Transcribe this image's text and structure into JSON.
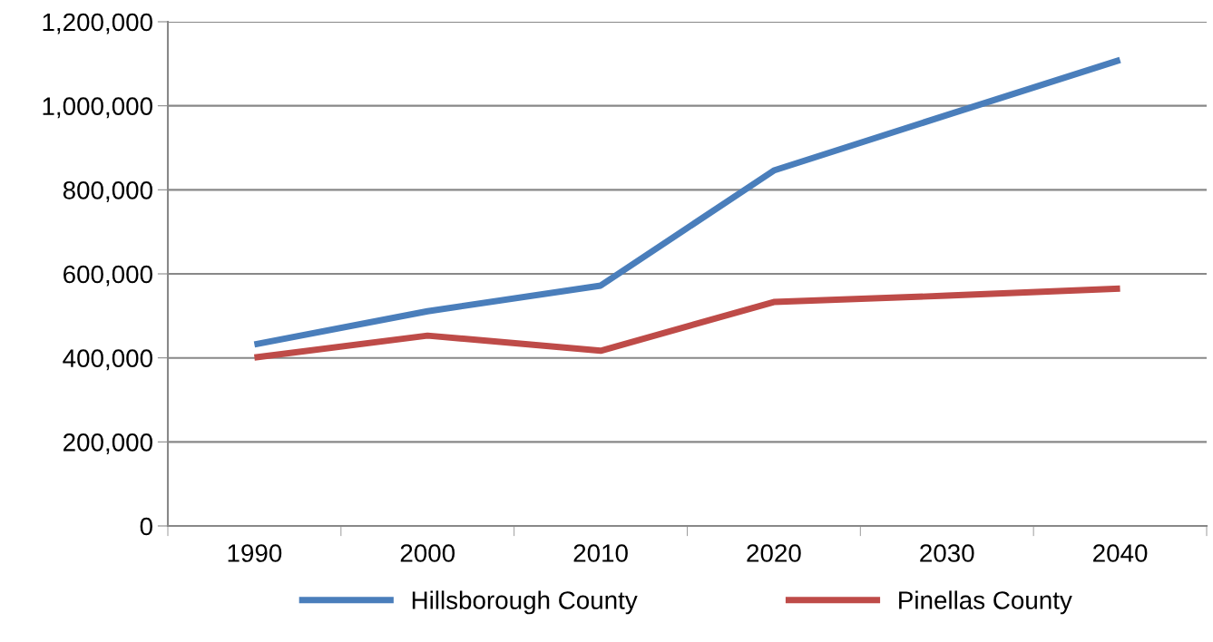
{
  "chart_data": {
    "type": "line",
    "categories": [
      "1990",
      "2000",
      "2010",
      "2020",
      "2030",
      "2040"
    ],
    "series": [
      {
        "name": "Hillsborough County",
        "color": "#4a7ebb",
        "values": [
          432000,
          511000,
          572000,
          846000,
          978000,
          1109000
        ]
      },
      {
        "name": "Pinellas County",
        "color": "#be4b48",
        "values": [
          401000,
          453000,
          417000,
          533000,
          548000,
          565000
        ]
      }
    ],
    "ylim": [
      0,
      1200000
    ],
    "yticks": [
      {
        "value": 0,
        "label": "0"
      },
      {
        "value": 200000,
        "label": "200,000"
      },
      {
        "value": 400000,
        "label": "400,000"
      },
      {
        "value": 600000,
        "label": "600,000"
      },
      {
        "value": 800000,
        "label": "800,000"
      },
      {
        "value": 1000000,
        "label": "1,000,000"
      },
      {
        "value": 1200000,
        "label": "1,200,000"
      }
    ],
    "grid": "y",
    "legend": "bottom",
    "marker": "none",
    "line_style": "solid"
  }
}
